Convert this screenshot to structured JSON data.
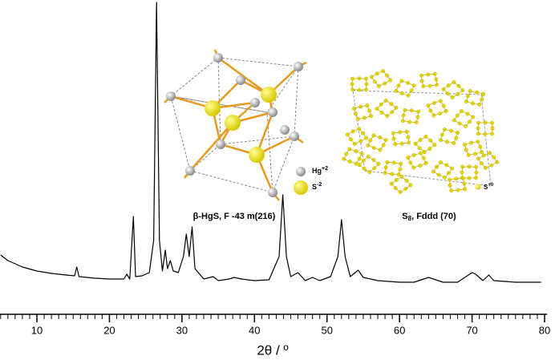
{
  "chart_data": {
    "type": "line",
    "x_label": "2θ / º",
    "x": [
      5,
      6,
      8,
      10,
      12,
      14,
      15.2,
      15.5,
      15.8,
      18,
      20,
      22,
      22.4,
      22.8,
      23.3,
      23.6,
      24.5,
      25.5,
      26.1,
      26.5,
      26.9,
      27.3,
      27.7,
      28.0,
      28.4,
      28.8,
      29.5,
      30.2,
      30.6,
      31.0,
      31.4,
      31.8,
      33,
      34.3,
      35,
      36.5,
      37.2,
      38.2,
      40,
      42,
      43.4,
      43.9,
      44.4,
      45,
      46,
      47,
      48,
      49,
      50.5,
      51.5,
      52.0,
      52.5,
      53.2,
      54.3,
      55,
      57,
      60,
      62,
      64,
      66,
      68,
      70,
      70.5,
      71.5,
      72.3,
      73,
      76,
      79.5
    ],
    "values": [
      74,
      67,
      59,
      54,
      51,
      49,
      48,
      59,
      47,
      45,
      44,
      44,
      50,
      44,
      122,
      47,
      48,
      52,
      92,
      389,
      92,
      54,
      80,
      57,
      67,
      54,
      52,
      72,
      100,
      72,
      109,
      57,
      44,
      47,
      42,
      44,
      46,
      44,
      42,
      43,
      72,
      149,
      72,
      47,
      52,
      42,
      46,
      42,
      47,
      72,
      118,
      72,
      47,
      55,
      46,
      42,
      40,
      40,
      46,
      40,
      40,
      52,
      50,
      42,
      49,
      42,
      40,
      40
    ],
    "color": "#000000",
    "xlim": [
      5,
      80
    ],
    "ylim": [
      0,
      390
    ],
    "xticks": [
      10,
      20,
      30,
      40,
      50,
      60,
      70,
      80
    ],
    "xminor_step": 1,
    "insets": [
      {
        "title": "β-HgS, F -43 m(216)",
        "legend": [
          {
            "symbol": "Hg",
            "charge": "+2",
            "color": "#b8b8b8"
          },
          {
            "symbol": "S",
            "charge": "-2",
            "color": "#f0e000"
          }
        ]
      },
      {
        "title": {
          "symbol": "S",
          "sub": "8",
          "rest": ", Fddd (70)"
        },
        "legend": [
          {
            "symbol": "S",
            "charge": "+0",
            "color": "#f0e000"
          }
        ]
      }
    ]
  }
}
